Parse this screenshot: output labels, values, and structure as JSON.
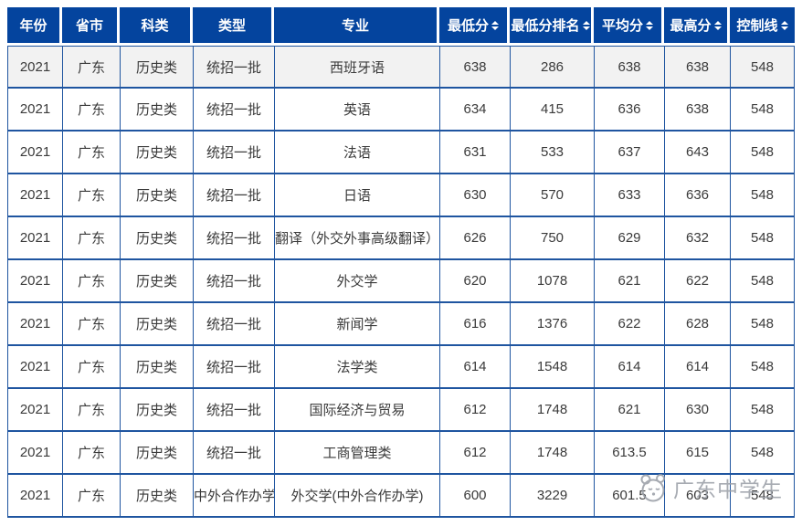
{
  "colors": {
    "header_bg": "#04449e",
    "header_text": "#ffffff",
    "body_border": "#1f55a0",
    "row_bg": "#ffffff",
    "row_alt_bg": "#f2f2f2",
    "cell_text": "#3a3a3a",
    "watermark": "#9ba0a8"
  },
  "table": {
    "columns": [
      {
        "key": "year",
        "label": "年份",
        "sortable": false
      },
      {
        "key": "province",
        "label": "省市",
        "sortable": false
      },
      {
        "key": "category",
        "label": "科类",
        "sortable": false
      },
      {
        "key": "type",
        "label": "类型",
        "sortable": false
      },
      {
        "key": "major",
        "label": "专业",
        "sortable": false
      },
      {
        "key": "min-score",
        "label": "最低分",
        "sortable": true
      },
      {
        "key": "min-rank",
        "label": "最低分排名",
        "sortable": true
      },
      {
        "key": "avg-score",
        "label": "平均分",
        "sortable": true
      },
      {
        "key": "max-score",
        "label": "最高分",
        "sortable": true
      },
      {
        "key": "control-line",
        "label": "控制线",
        "sortable": true
      }
    ],
    "rows": [
      [
        "2021",
        "广东",
        "历史类",
        "统招一批",
        "西班牙语",
        "638",
        "286",
        "638",
        "638",
        "548"
      ],
      [
        "2021",
        "广东",
        "历史类",
        "统招一批",
        "英语",
        "634",
        "415",
        "636",
        "638",
        "548"
      ],
      [
        "2021",
        "广东",
        "历史类",
        "统招一批",
        "法语",
        "631",
        "533",
        "637",
        "643",
        "548"
      ],
      [
        "2021",
        "广东",
        "历史类",
        "统招一批",
        "日语",
        "630",
        "570",
        "633",
        "636",
        "548"
      ],
      [
        "2021",
        "广东",
        "历史类",
        "统招一批",
        "翻译（外交外事高级翻译）",
        "626",
        "750",
        "629",
        "632",
        "548"
      ],
      [
        "2021",
        "广东",
        "历史类",
        "统招一批",
        "外交学",
        "620",
        "1078",
        "621",
        "622",
        "548"
      ],
      [
        "2021",
        "广东",
        "历史类",
        "统招一批",
        "新闻学",
        "616",
        "1376",
        "622",
        "628",
        "548"
      ],
      [
        "2021",
        "广东",
        "历史类",
        "统招一批",
        "法学类",
        "614",
        "1548",
        "614",
        "614",
        "548"
      ],
      [
        "2021",
        "广东",
        "历史类",
        "统招一批",
        "国际经济与贸易",
        "612",
        "1748",
        "621",
        "630",
        "548"
      ],
      [
        "2021",
        "广东",
        "历史类",
        "统招一批",
        "工商管理类",
        "612",
        "1748",
        "613.5",
        "615",
        "548"
      ],
      [
        "2021",
        "广东",
        "历史类",
        "中外合作办学",
        "外交学(中外合作办学)",
        "600",
        "3229",
        "601.5",
        "603",
        "548"
      ]
    ]
  },
  "watermark": {
    "text": "广东中学生",
    "icon": "mascot-face-icon"
  }
}
